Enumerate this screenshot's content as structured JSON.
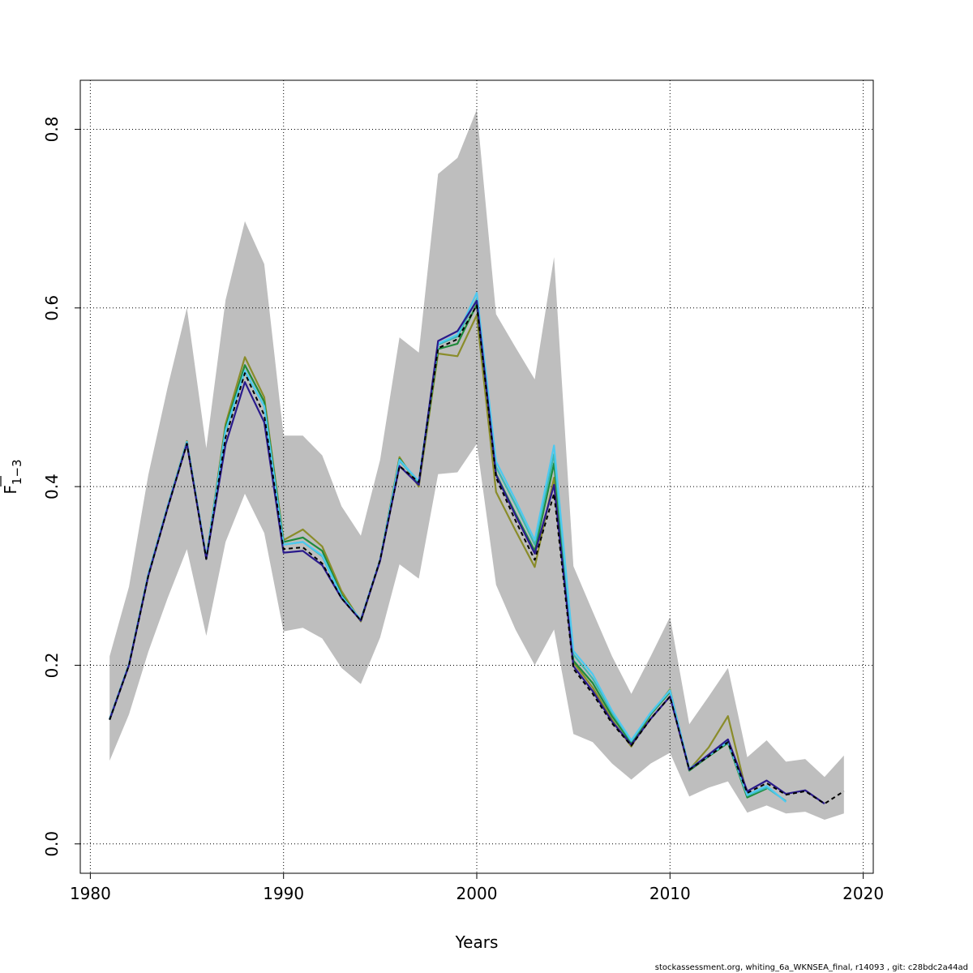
{
  "chart_data": {
    "type": "line",
    "xlabel": "Years",
    "ylabel_base": "F",
    "ylabel_sub": "1−3",
    "xlim": [
      1980,
      2021
    ],
    "ylim": [
      0,
      0.85
    ],
    "x_ticks": [
      1980,
      1990,
      2000,
      2010,
      2020
    ],
    "y_ticks": [
      0.0,
      0.2,
      0.4,
      0.6,
      0.8
    ],
    "y_tick_labels": [
      "0.0",
      "0.2",
      "0.4",
      "0.6",
      "0.8"
    ],
    "grid": true,
    "band": {
      "x": [
        1981,
        1982,
        1983,
        1984,
        1985,
        1986,
        1987,
        1988,
        1989,
        1990,
        1991,
        1992,
        1993,
        1994,
        1995,
        1996,
        1997,
        1998,
        1999,
        2000,
        2001,
        2002,
        2003,
        2004,
        2005,
        2006,
        2007,
        2008,
        2009,
        2010,
        2011,
        2012,
        2013,
        2014,
        2015,
        2016,
        2017,
        2018,
        2019
      ],
      "lower": [
        0.093,
        0.145,
        0.215,
        0.275,
        0.33,
        0.233,
        0.338,
        0.392,
        0.348,
        0.238,
        0.242,
        0.23,
        0.197,
        0.179,
        0.231,
        0.313,
        0.297,
        0.414,
        0.416,
        0.448,
        0.29,
        0.24,
        0.2,
        0.24,
        0.123,
        0.114,
        0.09,
        0.072,
        0.09,
        0.102,
        0.053,
        0.063,
        0.07,
        0.035,
        0.043,
        0.034,
        0.036,
        0.027,
        0.034
      ],
      "upper": [
        0.21,
        0.288,
        0.413,
        0.511,
        0.6,
        0.443,
        0.609,
        0.697,
        0.649,
        0.457,
        0.457,
        0.435,
        0.378,
        0.345,
        0.43,
        0.567,
        0.55,
        0.75,
        0.768,
        0.822,
        0.593,
        0.556,
        0.52,
        0.657,
        0.311,
        0.26,
        0.21,
        0.168,
        0.21,
        0.254,
        0.134,
        0.165,
        0.197,
        0.097,
        0.116,
        0.092,
        0.095,
        0.075,
        0.099
      ]
    },
    "series": [
      {
        "color": "#000000",
        "dash": true,
        "x": [
          1981,
          1982,
          1983,
          1984,
          1985,
          1986,
          1987,
          1988,
          1989,
          1990,
          1991,
          1992,
          1993,
          1994,
          1995,
          1996,
          1997,
          1998,
          1999,
          2000,
          2001,
          2002,
          2003,
          2004,
          2005,
          2006,
          2007,
          2008,
          2009,
          2010,
          2011,
          2012,
          2013,
          2014,
          2015,
          2016,
          2017,
          2018,
          2019
        ],
        "values": [
          0.139,
          0.2,
          0.3,
          0.376,
          0.448,
          0.319,
          0.455,
          0.527,
          0.48,
          0.33,
          0.332,
          0.314,
          0.275,
          0.25,
          0.318,
          0.423,
          0.405,
          0.555,
          0.565,
          0.603,
          0.41,
          0.362,
          0.318,
          0.392,
          0.196,
          0.168,
          0.135,
          0.11,
          0.14,
          0.165,
          0.083,
          0.098,
          0.114,
          0.057,
          0.068,
          0.055,
          0.059,
          0.045,
          0.059
        ]
      },
      {
        "color": "#2a1a8c",
        "dash": false,
        "x": [
          1981,
          1982,
          1983,
          1984,
          1985,
          1986,
          1987,
          1988,
          1989,
          1990,
          1991,
          1992,
          1993,
          1994,
          1995,
          1996,
          1997,
          1998,
          1999,
          2000,
          2001,
          2002,
          2003,
          2004,
          2005,
          2006,
          2007,
          2008,
          2009,
          2010,
          2011,
          2012,
          2013,
          2014,
          2015,
          2016,
          2017,
          2018
        ],
        "values": [
          0.139,
          0.2,
          0.3,
          0.376,
          0.448,
          0.319,
          0.447,
          0.517,
          0.472,
          0.326,
          0.328,
          0.312,
          0.275,
          0.25,
          0.317,
          0.423,
          0.402,
          0.563,
          0.574,
          0.608,
          0.413,
          0.368,
          0.325,
          0.402,
          0.199,
          0.171,
          0.137,
          0.111,
          0.14,
          0.165,
          0.083,
          0.1,
          0.117,
          0.059,
          0.071,
          0.056,
          0.06,
          0.045
        ]
      },
      {
        "color": "#4dc9f0",
        "dash": false,
        "x": [
          1981,
          1982,
          1983,
          1984,
          1985,
          1986,
          1987,
          1988,
          1989,
          1990,
          1991,
          1992,
          1993,
          1994,
          1995,
          1996,
          1997,
          1998,
          1999,
          2000,
          2001,
          2002,
          2003,
          2004,
          2005,
          2006,
          2007,
          2008,
          2009,
          2010,
          2011,
          2012,
          2013,
          2014,
          2015,
          2016
        ],
        "values": [
          0.14,
          0.201,
          0.302,
          0.378,
          0.45,
          0.321,
          0.463,
          0.53,
          0.49,
          0.335,
          0.338,
          0.323,
          0.277,
          0.251,
          0.318,
          0.43,
          0.406,
          0.56,
          0.57,
          0.617,
          0.428,
          0.385,
          0.34,
          0.446,
          0.216,
          0.19,
          0.149,
          0.116,
          0.147,
          0.172,
          0.084,
          0.099,
          0.115,
          0.055,
          0.065,
          0.047
        ]
      },
      {
        "color": "#3cb8b0",
        "dash": false,
        "x": [
          1981,
          1982,
          1983,
          1984,
          1985,
          1986,
          1987,
          1988,
          1989,
          1990,
          1991,
          1992,
          1993,
          1994,
          1995,
          1996,
          1997,
          1998,
          1999,
          2000,
          2001,
          2002,
          2003,
          2004,
          2005,
          2006,
          2007,
          2008,
          2009,
          2010,
          2011,
          2012,
          2013,
          2014,
          2015,
          2016
        ],
        "values": [
          0.139,
          0.201,
          0.301,
          0.377,
          0.45,
          0.32,
          0.462,
          0.529,
          0.49,
          0.335,
          0.338,
          0.322,
          0.277,
          0.251,
          0.318,
          0.429,
          0.405,
          0.559,
          0.568,
          0.61,
          0.422,
          0.38,
          0.335,
          0.436,
          0.212,
          0.185,
          0.147,
          0.115,
          0.146,
          0.171,
          0.084,
          0.099,
          0.114,
          0.054,
          0.063,
          0.048
        ]
      },
      {
        "color": "#1f8a3a",
        "dash": false,
        "x": [
          1981,
          1982,
          1983,
          1984,
          1985,
          1986,
          1987,
          1988,
          1989,
          1990,
          1991,
          1992,
          1993,
          1994,
          1995,
          1996,
          1997,
          1998,
          1999,
          2000,
          2001,
          2002,
          2003,
          2004,
          2005,
          2006,
          2007,
          2008,
          2009,
          2010,
          2011,
          2012,
          2013,
          2014,
          2015
        ],
        "values": [
          0.139,
          0.201,
          0.301,
          0.377,
          0.45,
          0.32,
          0.466,
          0.536,
          0.495,
          0.338,
          0.343,
          0.328,
          0.279,
          0.25,
          0.318,
          0.431,
          0.404,
          0.554,
          0.56,
          0.604,
          0.414,
          0.37,
          0.328,
          0.426,
          0.205,
          0.18,
          0.143,
          0.113,
          0.145,
          0.17,
          0.082,
          0.098,
          0.113,
          0.052,
          0.062
        ]
      },
      {
        "color": "#8a8c2a",
        "dash": false,
        "x": [
          1981,
          1982,
          1983,
          1984,
          1985,
          1986,
          1987,
          1988,
          1989,
          1990,
          1991,
          1992,
          1993,
          1994,
          1995,
          1996,
          1997,
          1998,
          1999,
          2000,
          2001,
          2002,
          2003,
          2004,
          2005,
          2006,
          2007,
          2008,
          2009,
          2010,
          2011,
          2012,
          2013,
          2014
        ],
        "values": [
          0.139,
          0.201,
          0.302,
          0.378,
          0.451,
          0.32,
          0.47,
          0.545,
          0.5,
          0.34,
          0.352,
          0.333,
          0.283,
          0.249,
          0.318,
          0.433,
          0.4,
          0.549,
          0.546,
          0.592,
          0.394,
          0.351,
          0.31,
          0.41,
          0.203,
          0.175,
          0.139,
          0.109,
          0.145,
          0.173,
          0.083,
          0.108,
          0.143,
          0.054
        ]
      }
    ]
  },
  "footer": {
    "text": "stockassessment.org, whiting_6a_WKNSEA_final, r14093 , git: c28bdc2a44ad"
  }
}
